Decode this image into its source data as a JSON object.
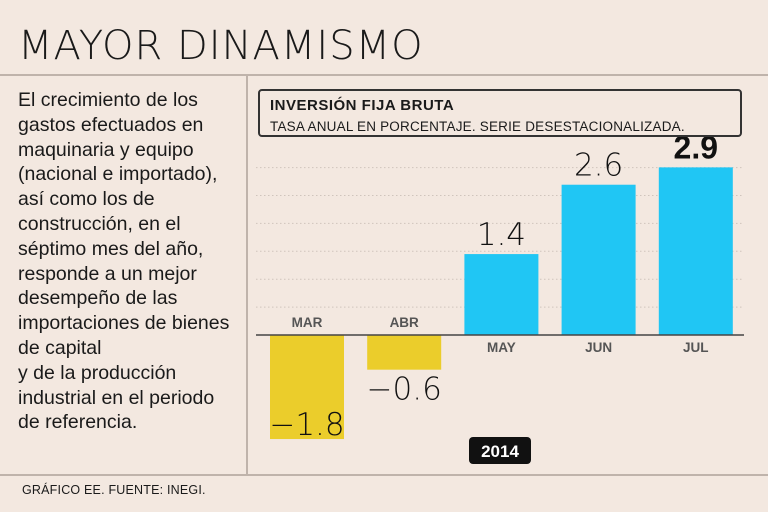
{
  "header": {
    "title": "MAYOR DINAMISMO"
  },
  "body": {
    "text": "El crecimiento de los\ngastos efectuados en\nmaquinaria y equipo\n(nacional e importado),\nasí como los de\nconstrucción, en el\nséptimo mes del año,\nresponde a un mejor\ndesempeño de las\nimportaciones de bienes\nde capital\ny de la producción\nindustrial en el periodo\nde referencia."
  },
  "footer": {
    "text": "GRÁFICO EE. FUENTE: INEGI."
  },
  "colors": {
    "negative": "#ebcd2b",
    "positive": "#20c6f4",
    "background": "#f3e8e0",
    "year_badge": "#111111"
  },
  "chart_data": {
    "type": "bar",
    "title": "INVERSIÓN FIJA BRUTA",
    "subtitle": "TASA ANUAL EN PORCENTAJE. SERIE DESESTACIONALIZADA.",
    "categories": [
      "MAR",
      "ABR",
      "MAY",
      "JUN",
      "JUL"
    ],
    "values": [
      -1.8,
      -0.6,
      1.4,
      2.6,
      2.9
    ],
    "value_labels": [
      "−1.8",
      "−0.6",
      "1.4",
      "2.6",
      "2.9"
    ],
    "highlight_index": 4,
    "year_label": "2014",
    "ylim": [
      -1.8,
      2.9
    ],
    "grid": true,
    "xlabel": "",
    "ylabel": ""
  }
}
